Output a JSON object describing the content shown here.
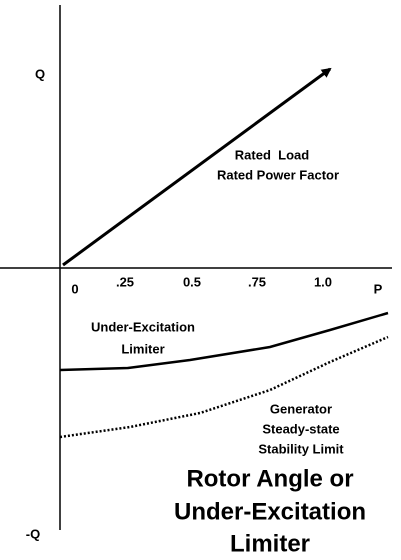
{
  "axes": {
    "q_positive": "Q",
    "q_negative": "-Q",
    "p": "P"
  },
  "p_ticks": [
    "0",
    ".25",
    "0.5",
    ".75",
    "1.0"
  ],
  "arrow_label": [
    "Rated  Load",
    "Rated Power Factor"
  ],
  "limiter_label": [
    "Under-Excitation",
    "Limiter"
  ],
  "stability_label": [
    "Generator",
    "Steady-state",
    "Stability Limit"
  ],
  "title": [
    "Rotor Angle or",
    "Under-Excitation",
    "Limiter"
  ]
}
